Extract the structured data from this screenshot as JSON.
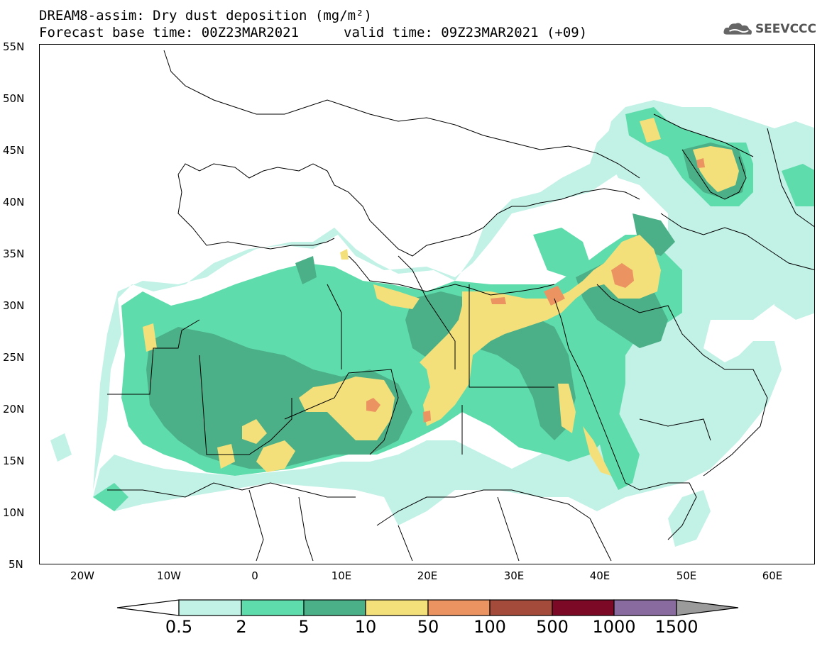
{
  "title_line1": "DREAM8-assim: Dry dust deposition (mg/m²)",
  "title_line2": "Forecast base time: 00Z23MAR2021",
  "title_line3": "valid time: 09Z23MAR2021 (+09)",
  "logo_text": "SEEVCCC",
  "logo_icon": "cloud-icon",
  "lat_labels": [
    "55N",
    "50N",
    "45N",
    "40N",
    "35N",
    "30N",
    "25N",
    "20N",
    "15N",
    "10N",
    "5N"
  ],
  "lon_labels": [
    "20W",
    "10W",
    "0",
    "10E",
    "20E",
    "30E",
    "40E",
    "50E",
    "60E"
  ],
  "colorbar": {
    "labels": [
      "0.5",
      "2",
      "5",
      "10",
      "50",
      "100",
      "500",
      "1000",
      "1500"
    ],
    "colors": [
      "#c2f1e6",
      "#5fdcac",
      "#4bb088",
      "#f4e07a",
      "#ec9362",
      "#a54b3c",
      "#7c0a27",
      "#8a6b9f",
      "#9b9b9b"
    ]
  },
  "map_colors": {
    "c1": "#c2f1e6",
    "c2": "#5fdcac",
    "c3": "#4bb088",
    "c4": "#f4e07a",
    "c5": "#ec9362"
  }
}
